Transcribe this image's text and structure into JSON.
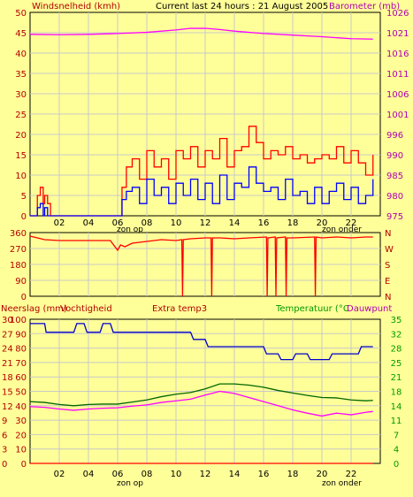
{
  "header": {
    "top_left": "Windsnelheid (kmh)",
    "title": "Current last 24 hours : 21 August 2005",
    "top_right": "Barometer (mb)"
  },
  "colors": {
    "background": "#ffff99",
    "grid": "#c8c8c8",
    "wind_avg": "#0000ff",
    "wind_gust": "#ff0000",
    "barometer": "#ff00ff",
    "direction": "#ff0000",
    "humidity": "#0000cc",
    "temperature": "#006600",
    "dewpoint": "#ff00ff",
    "rain": "#ff0000",
    "axis_label_left": "#b30000",
    "axis_label_right_baro": "#b000b0",
    "axis_label_right_temp": "#009900"
  },
  "x_ticks": [
    "02",
    "04",
    "06",
    "08",
    "10",
    "12",
    "14",
    "16",
    "18",
    "20",
    "22"
  ],
  "sun_labels": {
    "rise": "zon op",
    "set": "zon onder"
  },
  "chart_data": [
    {
      "type": "line",
      "id": "wind_baro",
      "xlabel": "",
      "xlim": [
        0,
        24
      ],
      "left_axis": {
        "label": "Windsnelheid (kmh)",
        "ticks": [
          0,
          5,
          10,
          15,
          20,
          25,
          30,
          35,
          40,
          45,
          50
        ],
        "ylim": [
          0,
          50
        ]
      },
      "right_axis": {
        "label": "Barometer (mb)",
        "ticks": [
          975,
          980,
          985,
          990,
          996,
          1001,
          1006,
          1011,
          1016,
          1021,
          1026
        ],
        "ylim": [
          975,
          1026
        ]
      },
      "grid": true,
      "series": [
        {
          "name": "Barometer (mb)",
          "axis": "right",
          "x": [
            0,
            2,
            4,
            6,
            8,
            10,
            11,
            12,
            13,
            14,
            16,
            18,
            20,
            22,
            23.5
          ],
          "y": [
            1020.5,
            1020.4,
            1020.5,
            1020.7,
            1021.0,
            1021.6,
            1022.0,
            1022.0,
            1021.7,
            1021.3,
            1020.7,
            1020.3,
            1019.9,
            1019.4,
            1019.3
          ]
        },
        {
          "name": "Windsnelheid gust",
          "axis": "left",
          "x": [
            0,
            0.3,
            0.5,
            0.7,
            0.9,
            1.0,
            1.2,
            1.4,
            6.0,
            6.3,
            6.6,
            7.0,
            7.5,
            8.0,
            8.5,
            9.0,
            9.5,
            10.0,
            10.5,
            11.0,
            11.5,
            12.0,
            12.5,
            13.0,
            13.5,
            14.0,
            14.5,
            15.0,
            15.5,
            16.0,
            16.5,
            17.0,
            17.5,
            18.0,
            18.5,
            19.0,
            19.5,
            20.0,
            20.5,
            21.0,
            21.5,
            22.0,
            22.5,
            23.0,
            23.5
          ],
          "y": [
            0,
            0,
            5,
            7,
            3,
            5,
            3,
            0,
            0,
            7,
            12,
            14,
            9,
            16,
            12,
            14,
            9,
            16,
            14,
            17,
            12,
            16,
            14,
            19,
            12,
            16,
            17,
            22,
            18,
            14,
            16,
            15,
            17,
            14,
            15,
            13,
            14,
            15,
            14,
            17,
            13,
            16,
            13,
            10,
            15
          ]
        },
        {
          "name": "Windsnelheid",
          "axis": "left",
          "x": [
            0,
            0.3,
            0.5,
            0.7,
            0.9,
            1.0,
            1.2,
            1.4,
            6.0,
            6.3,
            6.6,
            7.0,
            7.5,
            8.0,
            8.5,
            9.0,
            9.5,
            10.0,
            10.5,
            11.0,
            11.5,
            12.0,
            12.5,
            13.0,
            13.5,
            14.0,
            14.5,
            15.0,
            15.5,
            16.0,
            16.5,
            17.0,
            17.5,
            18.0,
            18.5,
            19.0,
            19.5,
            20.0,
            20.5,
            21.0,
            21.5,
            22.0,
            22.5,
            23.0,
            23.5
          ],
          "y": [
            0,
            0,
            2,
            3,
            0,
            2,
            0,
            0,
            0,
            4,
            6,
            7,
            3,
            9,
            5,
            7,
            3,
            8,
            5,
            9,
            4,
            8,
            3,
            10,
            4,
            8,
            7,
            12,
            8,
            6,
            7,
            4,
            9,
            5,
            6,
            3,
            7,
            3,
            6,
            8,
            4,
            7,
            3,
            5,
            9
          ]
        }
      ]
    },
    {
      "type": "line",
      "id": "wind_direction",
      "xlim": [
        0,
        24
      ],
      "left_axis": {
        "ticks": [
          0,
          90,
          180,
          270,
          360
        ],
        "ylim": [
          0,
          360
        ]
      },
      "right_axis": {
        "ticks": [
          "N",
          "W",
          "S",
          "E",
          "N"
        ]
      },
      "grid": true,
      "series": [
        {
          "name": "Windrichting",
          "x": [
            0,
            1,
            2,
            4,
            5.5,
            6.0,
            6.2,
            6.5,
            7.0,
            8.0,
            9.0,
            10.0,
            10.4,
            10.45,
            10.5,
            11.0,
            12.0,
            12.4,
            12.45,
            12.5,
            13,
            14,
            15,
            16.2,
            16.25,
            16.3,
            16.8,
            16.85,
            16.9,
            17.5,
            17.55,
            17.6,
            18,
            19.5,
            19.55,
            19.6,
            20,
            21,
            22,
            23,
            23.5
          ],
          "y": [
            340,
            320,
            315,
            315,
            315,
            260,
            290,
            280,
            300,
            310,
            320,
            315,
            320,
            0,
            320,
            325,
            330,
            330,
            0,
            330,
            330,
            325,
            330,
            335,
            0,
            330,
            335,
            0,
            330,
            335,
            0,
            330,
            330,
            335,
            0,
            335,
            330,
            335,
            330,
            335,
            335
          ]
        }
      ]
    },
    {
      "type": "line",
      "id": "rain_humidity_temp",
      "xlim": [
        0,
        24
      ],
      "left_axis_rain": {
        "label": "Neerslag (mm)",
        "ticks": [
          0,
          3,
          6,
          9,
          12,
          15,
          18,
          21,
          24,
          27,
          30
        ]
      },
      "left_axis_hum": {
        "label": "Vochtigheid",
        "ticks": [
          0,
          10,
          20,
          30,
          40,
          50,
          60,
          70,
          80,
          90,
          100
        ],
        "ylim": [
          0,
          100
        ]
      },
      "middle_label": "Extra temp3",
      "right_axis": {
        "label": "Temperatuur (°C",
        "label2": "Dauwpunt",
        "ticks": [
          0,
          4,
          7,
          11,
          14,
          18,
          21,
          25,
          28,
          32,
          35
        ],
        "ylim": [
          0,
          35
        ]
      },
      "grid": true,
      "series": [
        {
          "name": "Vochtigheid",
          "axis": "left",
          "x": [
            0,
            1,
            1.1,
            3.0,
            3.2,
            3.7,
            3.9,
            4.8,
            5.0,
            5.5,
            5.7,
            6.5,
            6.7,
            11.0,
            11.2,
            12.0,
            12.2,
            16.0,
            16.2,
            17.0,
            17.2,
            18.0,
            18.2,
            19.0,
            19.2,
            20.5,
            20.7,
            22.5,
            22.7,
            23.5
          ],
          "y": [
            97,
            97,
            91,
            91,
            97,
            97,
            91,
            91,
            97,
            97,
            91,
            91,
            91,
            91,
            86,
            86,
            81,
            81,
            76,
            76,
            72,
            72,
            76,
            76,
            72,
            72,
            76,
            76,
            81,
            81
          ]
        },
        {
          "name": "Temperatuur",
          "axis": "right",
          "x": [
            0,
            1,
            2,
            3,
            4,
            5,
            6,
            7,
            8,
            9,
            10,
            11,
            12,
            13,
            14,
            15,
            16,
            17,
            18,
            19,
            20,
            21,
            22,
            23,
            23.5
          ],
          "y": [
            15.0,
            14.8,
            14.3,
            14.0,
            14.3,
            14.4,
            14.4,
            14.9,
            15.4,
            16.2,
            16.8,
            17.2,
            18.1,
            19.3,
            19.3,
            19.0,
            18.5,
            17.7,
            17.1,
            16.5,
            16.0,
            15.9,
            15.4,
            15.2,
            15.3
          ]
        },
        {
          "name": "Dauwpunt",
          "axis": "right",
          "x": [
            0,
            1,
            2,
            3,
            4,
            5,
            6,
            7,
            8,
            9,
            10,
            11,
            12,
            13,
            14,
            15,
            16,
            17,
            18,
            19,
            20,
            21,
            22,
            23,
            23.5
          ],
          "y": [
            13.8,
            13.6,
            13.2,
            12.9,
            13.2,
            13.4,
            13.5,
            13.9,
            14.2,
            14.8,
            15.2,
            15.6,
            16.6,
            17.5,
            17.0,
            16.0,
            15.0,
            14.0,
            13.0,
            12.2,
            11.5,
            12.2,
            11.8,
            12.4,
            12.6
          ]
        },
        {
          "name": "Neerslag",
          "axis": "left_rain",
          "x": [
            0,
            23.5
          ],
          "y": [
            0,
            0
          ]
        }
      ]
    }
  ]
}
